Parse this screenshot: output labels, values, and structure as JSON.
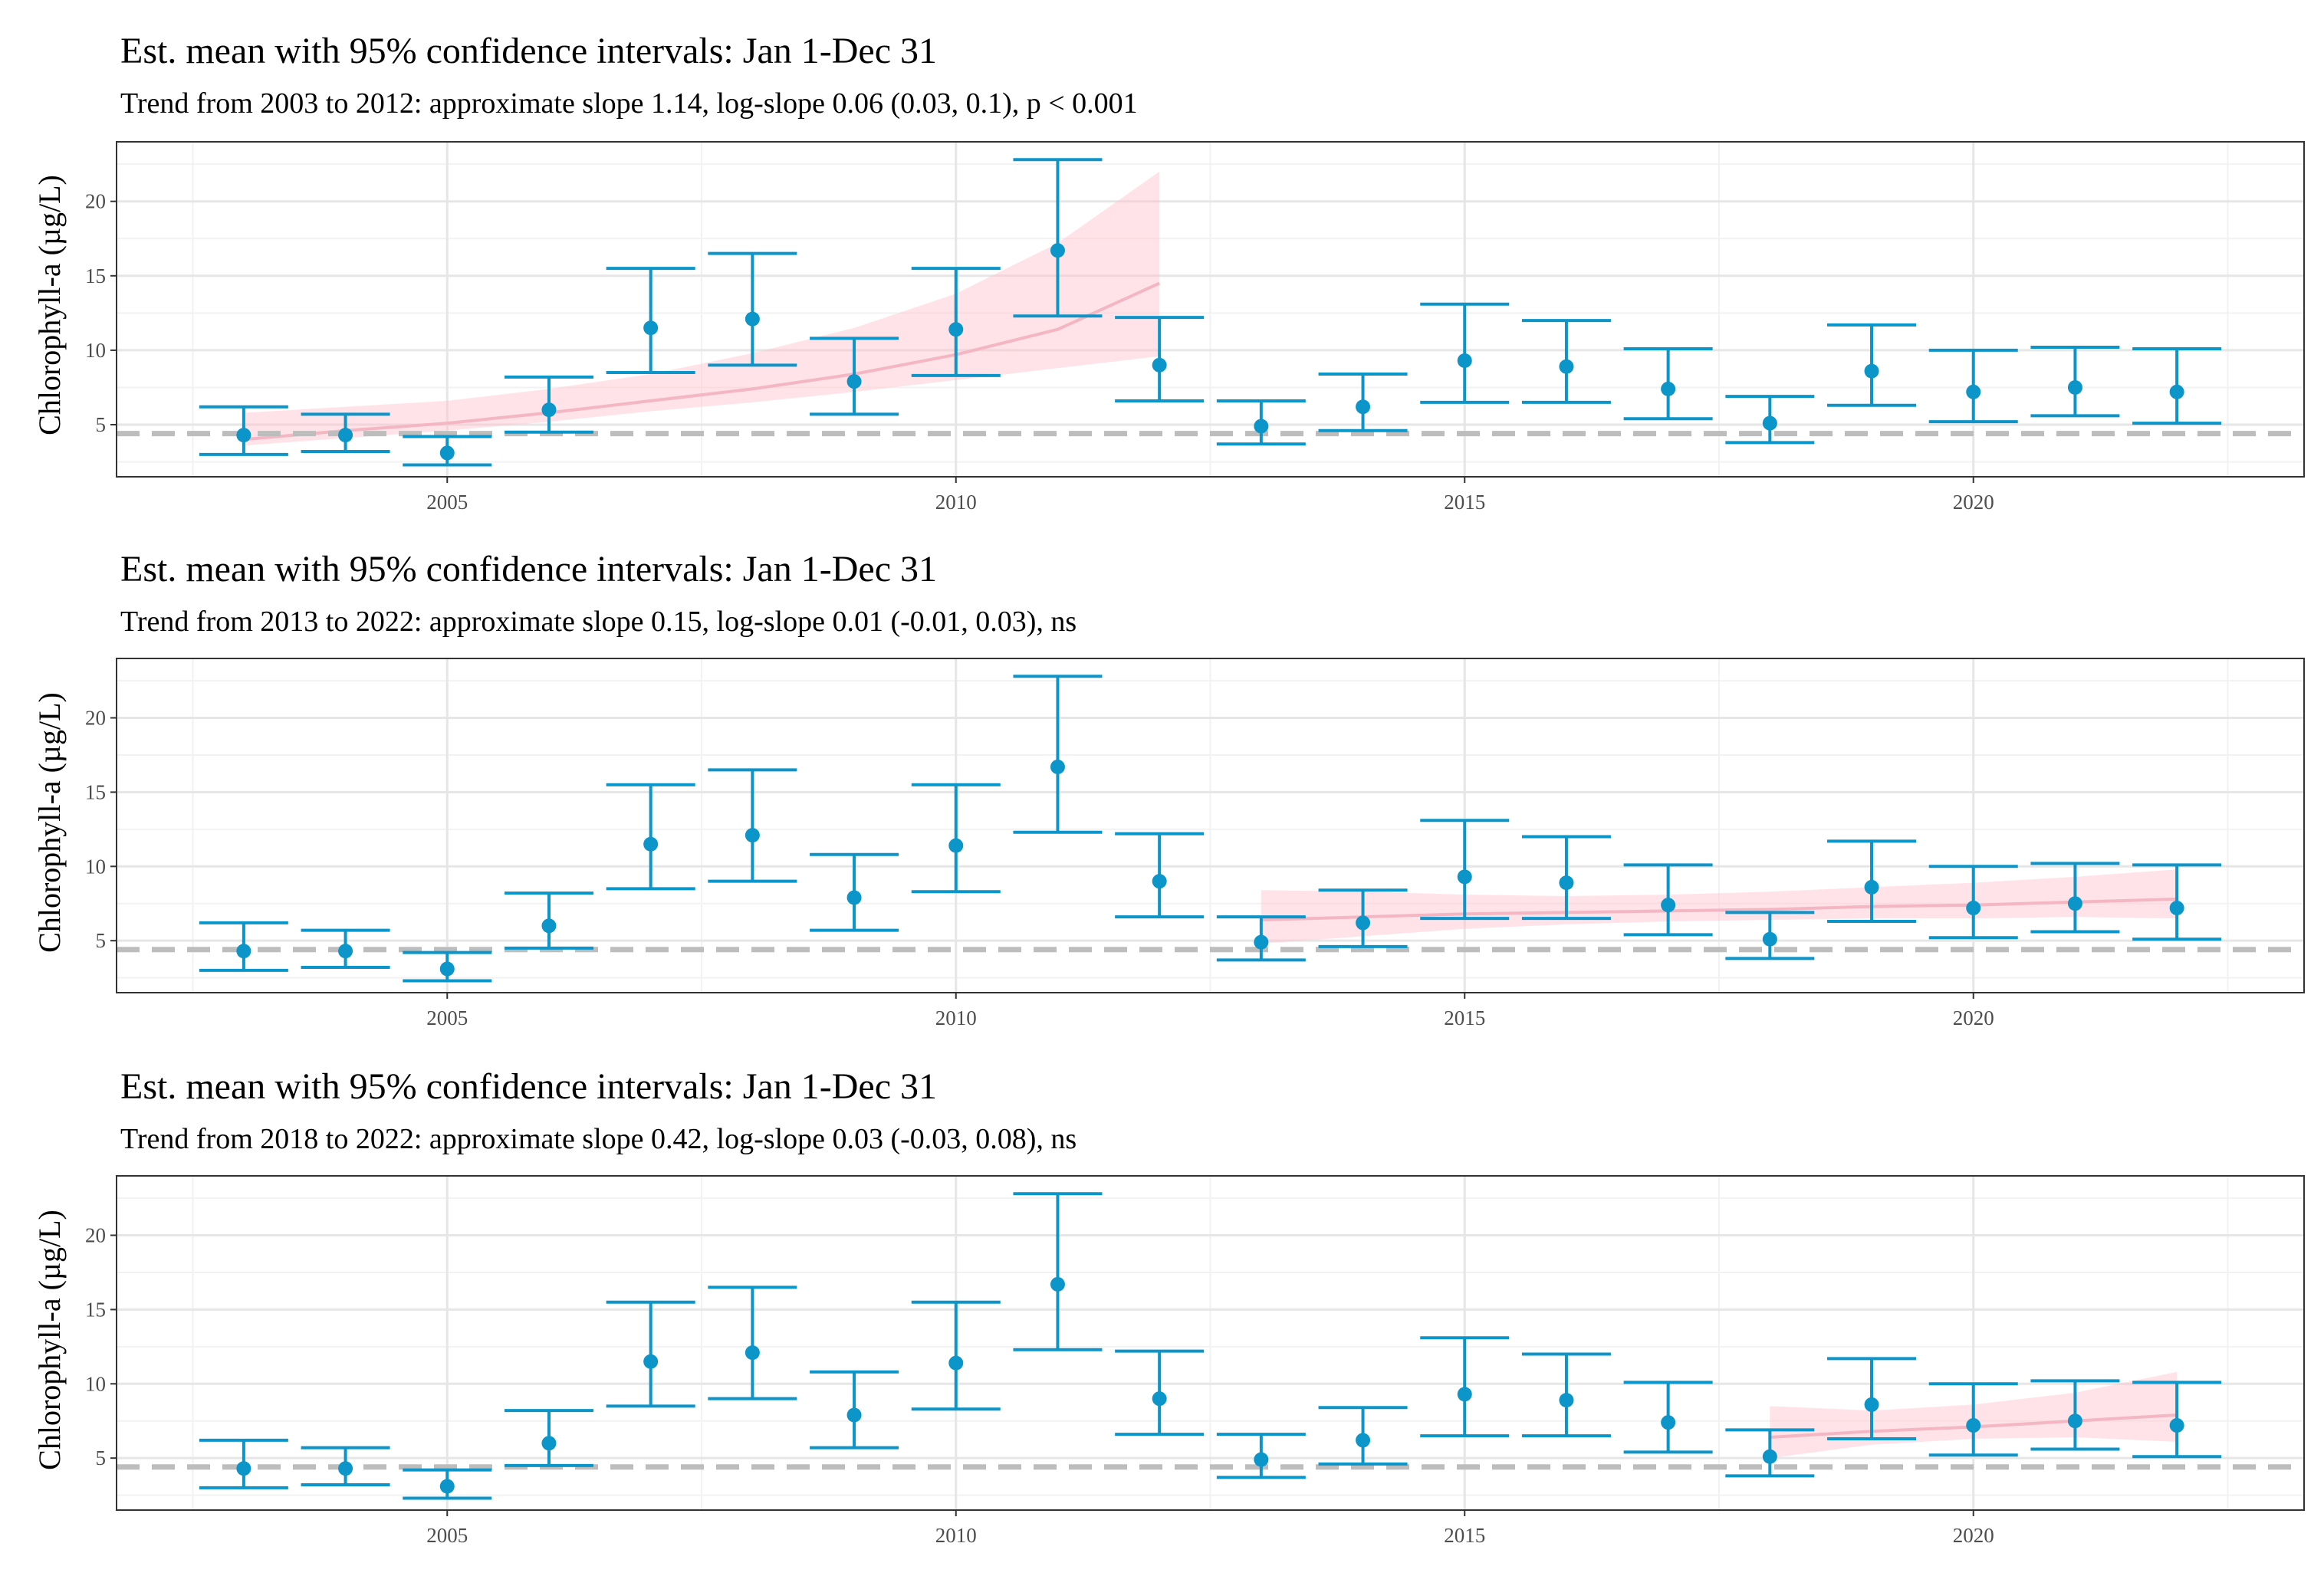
{
  "chart_data": [
    {
      "type": "errorbar",
      "title": "Est. mean with 95% confidence intervals: Jan 1-Dec 31",
      "subtitle": "Trend from 2003 to 2012: approximate slope 1.14, log-slope 0.06 (0.03, 0.1), p < 0.001",
      "ylabel": "Chlorophyll-a (µg/L)",
      "xlabel": "",
      "xlim": [
        2001.75,
        2023.25
      ],
      "ylim": [
        1.5,
        24
      ],
      "xticks": [
        2005,
        2010,
        2015,
        2020
      ],
      "yticks": [
        5,
        10,
        15,
        20
      ],
      "grid": true,
      "reference_line": 4.4,
      "series": {
        "x": [
          2003,
          2004,
          2005,
          2006,
          2007,
          2008,
          2009,
          2010,
          2011,
          2012,
          2013,
          2014,
          2015,
          2016,
          2017,
          2018,
          2019,
          2020,
          2021,
          2022
        ],
        "mean": [
          4.3,
          4.3,
          3.1,
          6.0,
          11.5,
          12.1,
          7.9,
          11.4,
          16.7,
          9.0,
          4.9,
          6.2,
          9.3,
          8.9,
          7.4,
          5.1,
          8.6,
          7.2,
          7.5,
          7.2
        ],
        "lower": [
          3.0,
          3.2,
          2.3,
          4.5,
          8.5,
          9.0,
          5.7,
          8.3,
          12.3,
          6.6,
          3.7,
          4.6,
          6.5,
          6.5,
          5.4,
          3.8,
          6.3,
          5.2,
          5.6,
          5.1
        ],
        "upper": [
          6.2,
          5.7,
          4.2,
          8.2,
          15.5,
          16.5,
          10.8,
          15.5,
          22.8,
          12.2,
          6.6,
          8.4,
          13.1,
          12.0,
          10.1,
          6.9,
          11.7,
          10.0,
          10.2,
          10.1
        ]
      },
      "trend": {
        "x": [
          2003,
          2004,
          2005,
          2006,
          2007,
          2008,
          2009,
          2010,
          2011,
          2012
        ],
        "fit": [
          4.0,
          4.6,
          5.1,
          5.8,
          6.6,
          7.4,
          8.4,
          9.7,
          11.4,
          14.5
        ],
        "lower": [
          3.6,
          4.1,
          4.6,
          5.2,
          5.9,
          6.5,
          7.2,
          8.0,
          8.8,
          9.6
        ],
        "upper": [
          5.8,
          6.2,
          6.6,
          7.4,
          8.4,
          9.8,
          11.5,
          13.8,
          17.2,
          22.0
        ]
      }
    },
    {
      "type": "errorbar",
      "title": "Est. mean with 95% confidence intervals: Jan 1-Dec 31",
      "subtitle": "Trend from 2013 to 2022: approximate slope 0.15, log-slope 0.01 (-0.01, 0.03), ns",
      "ylabel": "Chlorophyll-a (µg/L)",
      "xlabel": "",
      "xlim": [
        2001.75,
        2023.25
      ],
      "ylim": [
        1.5,
        24
      ],
      "xticks": [
        2005,
        2010,
        2015,
        2020
      ],
      "yticks": [
        5,
        10,
        15,
        20
      ],
      "grid": true,
      "reference_line": 4.4,
      "series": {
        "x": [
          2003,
          2004,
          2005,
          2006,
          2007,
          2008,
          2009,
          2010,
          2011,
          2012,
          2013,
          2014,
          2015,
          2016,
          2017,
          2018,
          2019,
          2020,
          2021,
          2022
        ],
        "mean": [
          4.3,
          4.3,
          3.1,
          6.0,
          11.5,
          12.1,
          7.9,
          11.4,
          16.7,
          9.0,
          4.9,
          6.2,
          9.3,
          8.9,
          7.4,
          5.1,
          8.6,
          7.2,
          7.5,
          7.2
        ],
        "lower": [
          3.0,
          3.2,
          2.3,
          4.5,
          8.5,
          9.0,
          5.7,
          8.3,
          12.3,
          6.6,
          3.7,
          4.6,
          6.5,
          6.5,
          5.4,
          3.8,
          6.3,
          5.2,
          5.6,
          5.1
        ],
        "upper": [
          6.2,
          5.7,
          4.2,
          8.2,
          15.5,
          16.5,
          10.8,
          15.5,
          22.8,
          12.2,
          6.6,
          8.4,
          13.1,
          12.0,
          10.1,
          6.9,
          11.7,
          10.0,
          10.2,
          10.1
        ]
      },
      "trend": {
        "x": [
          2013,
          2014,
          2015,
          2016,
          2017,
          2018,
          2019,
          2020,
          2021,
          2022
        ],
        "fit": [
          6.4,
          6.6,
          6.8,
          6.9,
          7.0,
          7.1,
          7.3,
          7.4,
          7.6,
          7.8
        ],
        "lower": [
          4.8,
          5.3,
          5.8,
          6.1,
          6.3,
          6.4,
          6.5,
          6.5,
          6.6,
          6.5
        ],
        "upper": [
          8.4,
          8.3,
          8.1,
          8.0,
          8.1,
          8.3,
          8.6,
          8.9,
          9.3,
          9.8
        ]
      }
    },
    {
      "type": "errorbar",
      "title": "Est. mean with 95% confidence intervals: Jan 1-Dec 31",
      "subtitle": "Trend from 2018 to 2022: approximate slope 0.42, log-slope 0.03 (-0.03, 0.08), ns",
      "ylabel": "Chlorophyll-a (µg/L)",
      "xlabel": "",
      "xlim": [
        2001.75,
        2023.25
      ],
      "ylim": [
        1.5,
        24
      ],
      "xticks": [
        2005,
        2010,
        2015,
        2020
      ],
      "yticks": [
        5,
        10,
        15,
        20
      ],
      "grid": true,
      "reference_line": 4.4,
      "series": {
        "x": [
          2003,
          2004,
          2005,
          2006,
          2007,
          2008,
          2009,
          2010,
          2011,
          2012,
          2013,
          2014,
          2015,
          2016,
          2017,
          2018,
          2019,
          2020,
          2021,
          2022
        ],
        "mean": [
          4.3,
          4.3,
          3.1,
          6.0,
          11.5,
          12.1,
          7.9,
          11.4,
          16.7,
          9.0,
          4.9,
          6.2,
          9.3,
          8.9,
          7.4,
          5.1,
          8.6,
          7.2,
          7.5,
          7.2
        ],
        "lower": [
          3.0,
          3.2,
          2.3,
          4.5,
          8.5,
          9.0,
          5.7,
          8.3,
          12.3,
          6.6,
          3.7,
          4.6,
          6.5,
          6.5,
          5.4,
          3.8,
          6.3,
          5.2,
          5.6,
          5.1
        ],
        "upper": [
          6.2,
          5.7,
          4.2,
          8.2,
          15.5,
          16.5,
          10.8,
          15.5,
          22.8,
          12.2,
          6.6,
          8.4,
          13.1,
          12.0,
          10.1,
          6.9,
          11.7,
          10.0,
          10.2,
          10.1
        ]
      },
      "trend": {
        "x": [
          2018,
          2019,
          2020,
          2021,
          2022
        ],
        "fit": [
          6.4,
          6.8,
          7.1,
          7.5,
          7.9
        ],
        "lower": [
          5.0,
          5.9,
          6.3,
          6.4,
          6.1
        ],
        "upper": [
          8.5,
          8.2,
          8.6,
          9.4,
          10.8
        ]
      }
    }
  ],
  "colors": {
    "point": "#0b95c9",
    "errorbar": "#0b95c9",
    "trend_line": "#f4b6c2",
    "trend_band": "#ffc0cb",
    "reference_line": "#bdbdbd",
    "grid_major": "#e6e6e6",
    "grid_minor": "#f2f2f2",
    "panel_border": "#333333",
    "tick_text": "#4d4d4d"
  }
}
